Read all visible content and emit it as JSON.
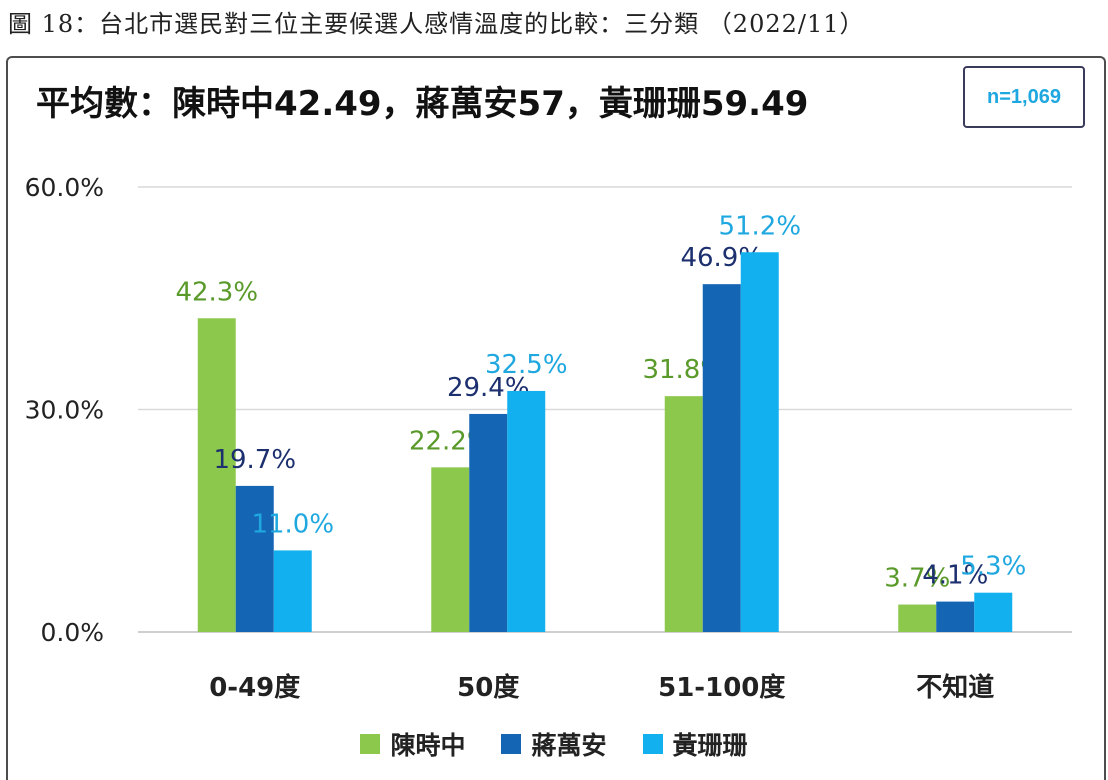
{
  "caption": "圖 18：台北市選民對三位主要候選人感情溫度的比較：三分類 （2022/11）",
  "subtitle": "平均數：陳時中42.49，蔣萬安57，黃珊珊59.49",
  "sample_size": "n=1,069",
  "colors": {
    "series_1": "#8cc84b",
    "series_1_label": "#5a9a2a",
    "series_2": "#1565b5",
    "series_2_label": "#1c2f6e",
    "series_3": "#12b0ee",
    "series_3_label": "#1fa8e0",
    "grid": "#d9d9d9"
  },
  "chart_data": {
    "type": "bar",
    "categories": [
      "0-49度",
      "50度",
      "51-100度",
      "不知道"
    ],
    "series": [
      {
        "name": "陳時中",
        "values": [
          42.3,
          22.2,
          31.8,
          3.7
        ],
        "labels": [
          "42.3%",
          "22.2%",
          "31.8%",
          "3.7%"
        ]
      },
      {
        "name": "蔣萬安",
        "values": [
          19.7,
          29.4,
          46.9,
          4.1
        ],
        "labels": [
          "19.7%",
          "29.4%",
          "46.9%",
          "4.1%"
        ]
      },
      {
        "name": "黃珊珊",
        "values": [
          11.0,
          32.5,
          51.2,
          5.3
        ],
        "labels": [
          "11.0%",
          "32.5%",
          "51.2%",
          "5.3%"
        ]
      }
    ],
    "yticks": [
      "0.0%",
      "30.0%",
      "60.0%"
    ],
    "ytick_values": [
      0,
      30,
      60
    ],
    "ylim": [
      0,
      60
    ],
    "grid": true,
    "legend_position": "bottom"
  }
}
